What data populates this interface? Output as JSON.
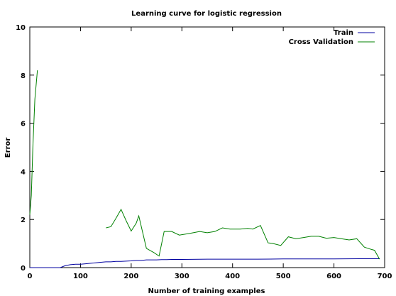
{
  "chart_data": {
    "type": "line",
    "title": "Learning curve for logistic regression",
    "xlabel": "Number of training examples",
    "ylabel": "Error",
    "xlim": [
      0,
      700
    ],
    "ylim": [
      0,
      10
    ],
    "xticks": [
      "0",
      "100",
      "200",
      "300",
      "400",
      "500",
      "600",
      "700"
    ],
    "yticks": [
      "0",
      "2",
      "4",
      "6",
      "8",
      "10"
    ],
    "legend_position": "top-right",
    "series": [
      {
        "name": "Train",
        "color": "#0000a0",
        "points": [
          [
            0,
            0
          ],
          [
            10,
            0
          ],
          [
            20,
            0
          ],
          [
            30,
            0
          ],
          [
            40,
            0
          ],
          [
            50,
            0
          ],
          [
            60,
            0
          ],
          [
            70,
            0.08
          ],
          [
            80,
            0.12
          ],
          [
            90,
            0.14
          ],
          [
            100,
            0.14
          ],
          [
            110,
            0.16
          ],
          [
            120,
            0.18
          ],
          [
            130,
            0.2
          ],
          [
            140,
            0.22
          ],
          [
            150,
            0.24
          ],
          [
            160,
            0.24
          ],
          [
            170,
            0.26
          ],
          [
            180,
            0.26
          ],
          [
            190,
            0.27
          ],
          [
            200,
            0.28
          ],
          [
            210,
            0.3
          ],
          [
            220,
            0.3
          ],
          [
            230,
            0.32
          ],
          [
            240,
            0.32
          ],
          [
            250,
            0.32
          ],
          [
            260,
            0.33
          ],
          [
            270,
            0.33
          ],
          [
            280,
            0.34
          ],
          [
            300,
            0.34
          ],
          [
            350,
            0.35
          ],
          [
            400,
            0.35
          ],
          [
            450,
            0.35
          ],
          [
            500,
            0.36
          ],
          [
            550,
            0.36
          ],
          [
            600,
            0.36
          ],
          [
            650,
            0.37
          ],
          [
            690,
            0.37
          ]
        ]
      },
      {
        "name": "Cross Validation",
        "color": "#008000",
        "segments": [
          [
            [
              0,
              2.2
            ],
            [
              3,
              3.0
            ],
            [
              6,
              5.0
            ],
            [
              10,
              7.0
            ],
            [
              15,
              8.2
            ]
          ],
          [
            [
              150,
              1.65
            ],
            [
              160,
              1.7
            ],
            [
              170,
              2.05
            ],
            [
              180,
              2.42
            ],
            [
              190,
              1.95
            ],
            [
              200,
              1.52
            ],
            [
              210,
              1.85
            ],
            [
              215,
              2.15
            ],
            [
              230,
              0.8
            ],
            [
              245,
              0.62
            ],
            [
              255,
              0.48
            ],
            [
              265,
              1.5
            ],
            [
              280,
              1.5
            ],
            [
              295,
              1.35
            ],
            [
              315,
              1.42
            ],
            [
              335,
              1.5
            ],
            [
              350,
              1.45
            ],
            [
              365,
              1.5
            ],
            [
              380,
              1.65
            ],
            [
              395,
              1.6
            ],
            [
              415,
              1.6
            ],
            [
              430,
              1.63
            ],
            [
              440,
              1.6
            ],
            [
              455,
              1.75
            ],
            [
              470,
              1.03
            ],
            [
              480,
              1.0
            ],
            [
              495,
              0.92
            ],
            [
              510,
              1.28
            ],
            [
              525,
              1.2
            ],
            [
              540,
              1.25
            ],
            [
              555,
              1.3
            ],
            [
              570,
              1.3
            ],
            [
              585,
              1.22
            ],
            [
              600,
              1.25
            ],
            [
              615,
              1.2
            ],
            [
              630,
              1.15
            ],
            [
              645,
              1.2
            ],
            [
              660,
              0.85
            ],
            [
              670,
              0.78
            ],
            [
              680,
              0.72
            ],
            [
              690,
              0.35
            ]
          ]
        ]
      }
    ]
  }
}
